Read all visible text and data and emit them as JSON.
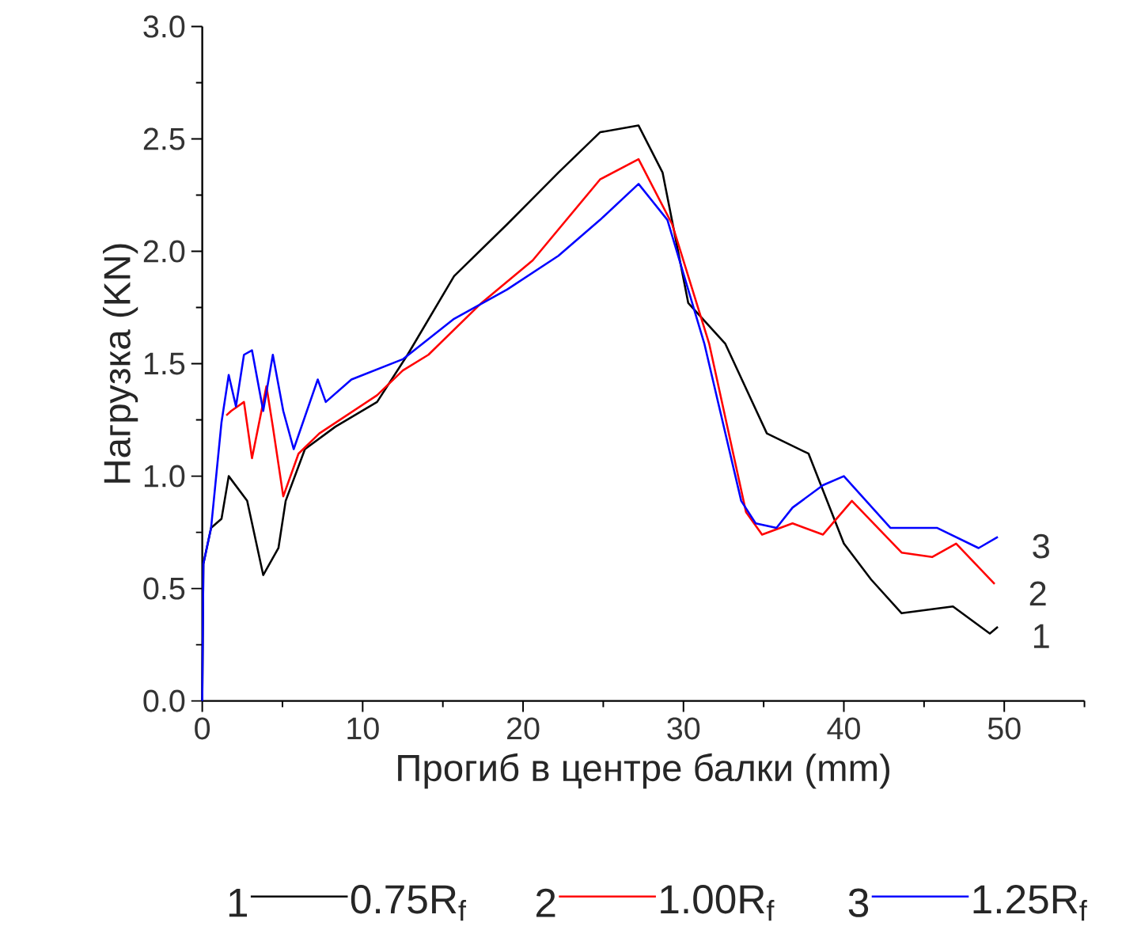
{
  "chart_data": {
    "type": "line",
    "xlabel": "Прогиб в центре балки (mm)",
    "ylabel": "Нагрузка (KN)",
    "xlim": [
      0,
      55
    ],
    "ylim": [
      0,
      3
    ],
    "xticks": [
      0,
      {
        "value": 5,
        "label": null
      },
      10,
      {
        "value": 15,
        "label": null
      },
      20,
      {
        "value": 25,
        "label": null
      },
      30,
      {
        "value": 35,
        "label": null
      },
      40,
      {
        "value": 45,
        "label": null
      },
      50,
      {
        "value": 55,
        "label": null
      }
    ],
    "yticks": [
      {
        "value": 0,
        "label": "0.0"
      },
      {
        "value": 0.25,
        "label": null
      },
      {
        "value": 0.5,
        "label": "0.5"
      },
      {
        "value": 0.75,
        "label": null
      },
      {
        "value": 1,
        "label": "1.0"
      },
      {
        "value": 1.25,
        "label": null
      },
      {
        "value": 1.5,
        "label": "1.5"
      },
      {
        "value": 1.75,
        "label": null
      },
      {
        "value": 2,
        "label": "2.0"
      },
      {
        "value": 2.25,
        "label": null
      },
      {
        "value": 2.5,
        "label": "2.5"
      },
      {
        "value": 2.75,
        "label": null
      },
      {
        "value": 3,
        "label": "3.0"
      }
    ],
    "legend": "bottom",
    "series": [
      {
        "name": "0.75R$_{f}$",
        "color": "#000000",
        "x": [
          0,
          0.07,
          0.55,
          1.2,
          1.65,
          2.8,
          3.8,
          4.75,
          5.2,
          6.4,
          8.3,
          10.9,
          12.8,
          15.7,
          19,
          22.2,
          24.8,
          27.2,
          28.7,
          30.3,
          32.6,
          35.2,
          37.8,
          40,
          41.7,
          43.6,
          46.8,
          49.1,
          49.6
        ],
        "values": [
          0,
          0.61,
          0.77,
          0.81,
          1.0,
          0.89,
          0.56,
          0.68,
          0.89,
          1.12,
          1.22,
          1.33,
          1.54,
          1.89,
          2.12,
          2.35,
          2.53,
          2.56,
          2.35,
          1.77,
          1.59,
          1.19,
          1.1,
          0.7,
          0.54,
          0.39,
          0.42,
          0.3,
          0.33
        ]
      },
      {
        "name": "1.00R$_{f}$",
        "color": "#ff0000",
        "x": [
          1.5,
          1.8,
          2.6,
          3.1,
          4.0,
          4.4,
          5.05,
          6.0,
          7.3,
          10.9,
          12.5,
          14.1,
          17.4,
          20.6,
          24.8,
          27.2,
          29.3,
          31.6,
          33.9,
          34.9,
          36.8,
          38.7,
          40.5,
          43.6,
          45.5,
          47,
          49.4
        ],
        "values": [
          1.27,
          1.29,
          1.33,
          1.08,
          1.4,
          1.22,
          0.91,
          1.1,
          1.19,
          1.36,
          1.47,
          1.54,
          1.77,
          1.96,
          2.32,
          2.41,
          2.12,
          1.59,
          0.84,
          0.74,
          0.79,
          0.74,
          0.89,
          0.66,
          0.64,
          0.7,
          0.52
        ]
      },
      {
        "name": "1.25R$_{f}$",
        "color": "#0000ff",
        "x": [
          0,
          0.07,
          0.55,
          1.2,
          1.65,
          2.1,
          2.6,
          3.1,
          3.8,
          4.4,
          5.05,
          5.7,
          7.2,
          7.7,
          9.3,
          12.5,
          15.7,
          19,
          22.2,
          24.8,
          27.2,
          29,
          31.3,
          33.6,
          34.5,
          35.8,
          36.8,
          38.7,
          40,
          42.9,
          45.8,
          48.4,
          49.6
        ],
        "values": [
          0,
          0.61,
          0.77,
          1.24,
          1.45,
          1.31,
          1.54,
          1.56,
          1.29,
          1.54,
          1.29,
          1.12,
          1.43,
          1.33,
          1.43,
          1.52,
          1.7,
          1.83,
          1.98,
          2.14,
          2.3,
          2.14,
          1.59,
          0.89,
          0.79,
          0.77,
          0.86,
          0.96,
          1.0,
          0.77,
          0.77,
          0.68,
          0.73
        ]
      }
    ],
    "annotations": [
      "1",
      "2",
      "3"
    ]
  }
}
